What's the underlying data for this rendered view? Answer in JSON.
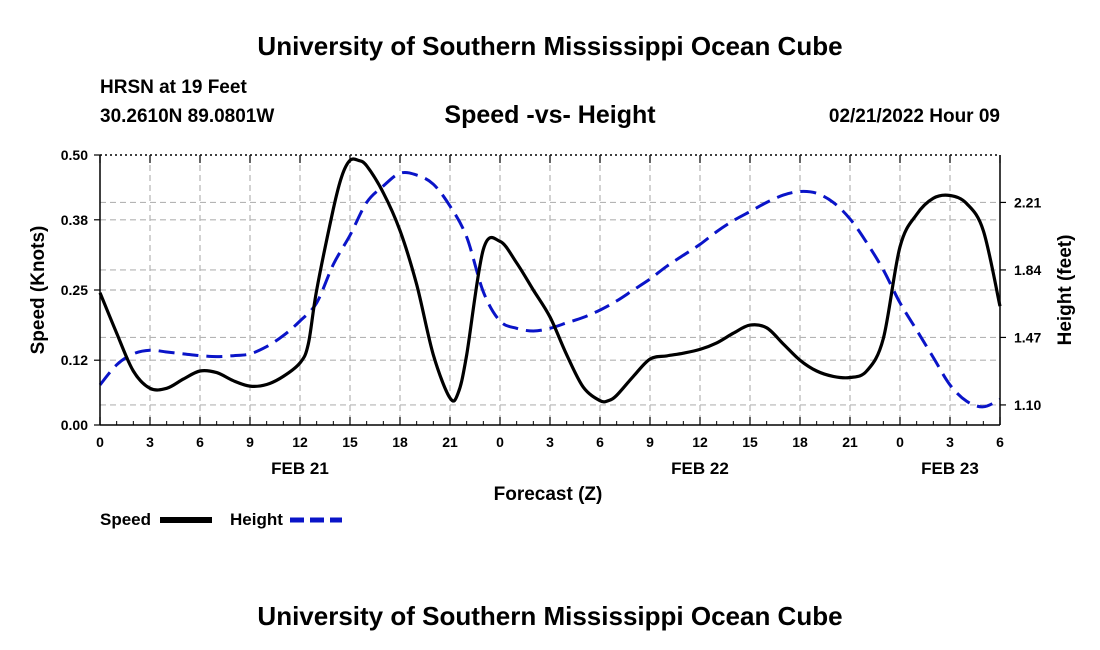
{
  "header": {
    "title": "University of Southern Mississippi Ocean Cube",
    "station": "HRSN at 19 Feet",
    "location": "30.2610N  89.0801W",
    "datetime": "02/21/2022 Hour 09"
  },
  "footer": {
    "title": "University of Southern Mississippi Ocean Cube"
  },
  "colors": {
    "speed": "#000000",
    "height": "#0a14c8",
    "grid": "#b4b4b4"
  },
  "chart_data": {
    "type": "line",
    "title": "Speed -vs- Height",
    "xlabel": "Forecast (Z)",
    "ylabel": "Speed (Knots)",
    "y2label": "Height (feet)",
    "xlim": [
      0,
      54
    ],
    "ylim": [
      0.0,
      0.5
    ],
    "y2lim": [
      0.99,
      2.47
    ],
    "x_ticks": [
      0,
      3,
      6,
      9,
      12,
      15,
      18,
      21,
      24,
      27,
      30,
      33,
      36,
      39,
      42,
      45,
      48,
      51,
      54
    ],
    "x_tick_labels": [
      "0",
      "3",
      "6",
      "9",
      "12",
      "15",
      "18",
      "21",
      "0",
      "3",
      "6",
      "9",
      "12",
      "15",
      "18",
      "21",
      "0",
      "3",
      "6"
    ],
    "date_labels": [
      {
        "x": 12,
        "label": "FEB 21"
      },
      {
        "x": 36,
        "label": "FEB 22"
      },
      {
        "x": 51,
        "label": "FEB 23"
      }
    ],
    "y_ticks": [
      0.0,
      0.12,
      0.25,
      0.38,
      0.5
    ],
    "y_tick_labels": [
      "0.00",
      "0.12",
      "0.25",
      "0.38",
      "0.50"
    ],
    "y2_ticks": [
      1.1,
      1.47,
      1.84,
      2.21
    ],
    "y2_tick_labels": [
      "1.10",
      "1.47",
      "1.84",
      "2.21"
    ],
    "legend": [
      {
        "name": "Speed",
        "style": "solid"
      },
      {
        "name": "Height",
        "style": "dashed"
      }
    ],
    "grid": true,
    "series": [
      {
        "name": "Speed",
        "axis": "left",
        "x": [
          0,
          1,
          2,
          3,
          4,
          5,
          6,
          7,
          8,
          9,
          10,
          11,
          12,
          12.5,
          13,
          14,
          14.5,
          15,
          15.5,
          16,
          17,
          18,
          19,
          20,
          21,
          21.5,
          22,
          23,
          24,
          25,
          26,
          27,
          28,
          29,
          30,
          30.5,
          31,
          32,
          33,
          34,
          35,
          36,
          37,
          38,
          39,
          40,
          41,
          42,
          43,
          44,
          45,
          46,
          47,
          48,
          49,
          50,
          51,
          52,
          53,
          54
        ],
        "y": [
          0.245,
          0.17,
          0.1,
          0.068,
          0.068,
          0.085,
          0.1,
          0.097,
          0.082,
          0.072,
          0.075,
          0.09,
          0.115,
          0.15,
          0.25,
          0.4,
          0.46,
          0.49,
          0.49,
          0.48,
          0.43,
          0.36,
          0.26,
          0.13,
          0.05,
          0.06,
          0.13,
          0.325,
          0.34,
          0.3,
          0.25,
          0.2,
          0.13,
          0.07,
          0.045,
          0.045,
          0.055,
          0.09,
          0.122,
          0.128,
          0.133,
          0.14,
          0.152,
          0.17,
          0.185,
          0.18,
          0.15,
          0.12,
          0.1,
          0.09,
          0.088,
          0.1,
          0.16,
          0.33,
          0.39,
          0.42,
          0.425,
          0.41,
          0.36,
          0.22
        ]
      },
      {
        "name": "Height",
        "axis": "right",
        "x": [
          0,
          1,
          2,
          3,
          4,
          5,
          6,
          7,
          8,
          9,
          10,
          11,
          12,
          13,
          14,
          15,
          16,
          17,
          18,
          19,
          20,
          21,
          22,
          23,
          24,
          25,
          26,
          27,
          28,
          29,
          30,
          31,
          32,
          33,
          34,
          35,
          36,
          37,
          38,
          39,
          40,
          41,
          42,
          43,
          44,
          45,
          46,
          47,
          48,
          49,
          50,
          51,
          52,
          53,
          54
        ],
        "y": [
          1.21,
          1.32,
          1.38,
          1.4,
          1.39,
          1.38,
          1.37,
          1.365,
          1.37,
          1.38,
          1.42,
          1.48,
          1.56,
          1.66,
          1.87,
          2.03,
          2.21,
          2.3,
          2.37,
          2.36,
          2.31,
          2.19,
          2.02,
          1.72,
          1.56,
          1.52,
          1.505,
          1.52,
          1.55,
          1.58,
          1.62,
          1.67,
          1.73,
          1.79,
          1.86,
          1.92,
          1.98,
          2.05,
          2.11,
          2.16,
          2.21,
          2.25,
          2.27,
          2.26,
          2.21,
          2.12,
          1.99,
          1.84,
          1.66,
          1.51,
          1.36,
          1.21,
          1.12,
          1.09,
          1.13
        ]
      }
    ]
  }
}
